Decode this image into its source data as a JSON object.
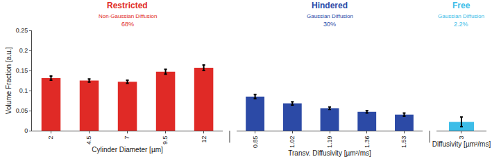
{
  "chart_data": {
    "type": "bar",
    "y_label": "Volume Fraction [a.u.]",
    "ylim": [
      0,
      0.25
    ],
    "yticks": [
      0,
      0.05,
      0.1,
      0.15,
      0.2,
      0.25
    ],
    "grid": false,
    "groups": [
      {
        "name": "Restricted",
        "subtitle": "Non-Gaussian Diffusion",
        "share": "68%",
        "x_label": "Cylinder Diameter [µm]",
        "color": "#e02a26",
        "categories": [
          "2",
          "4.5",
          "7",
          "9.5",
          "12"
        ],
        "values": [
          0.131,
          0.125,
          0.122,
          0.147,
          0.157
        ],
        "errors": [
          0.005,
          0.004,
          0.004,
          0.006,
          0.007
        ]
      },
      {
        "name": "Hindered",
        "subtitle": "Gaussian Diffusion",
        "share": "30%",
        "x_label": "Transv. Diffusivity [µm²/ms]",
        "color": "#2c4aa6",
        "categories": [
          "0.85",
          "1.02",
          "1.19",
          "1.36",
          "1.53"
        ],
        "values": [
          0.085,
          0.068,
          0.056,
          0.047,
          0.04
        ],
        "errors": [
          0.005,
          0.004,
          0.003,
          0.003,
          0.004
        ]
      },
      {
        "name": "Free",
        "subtitle": "Gaussian Diffusion",
        "share": "2.2%",
        "x_label": "Diffusivity [µm²/ms]",
        "color": "#3dbde8",
        "categories": [
          "3"
        ],
        "values": [
          0.022
        ],
        "errors": [
          0.012
        ]
      }
    ]
  }
}
